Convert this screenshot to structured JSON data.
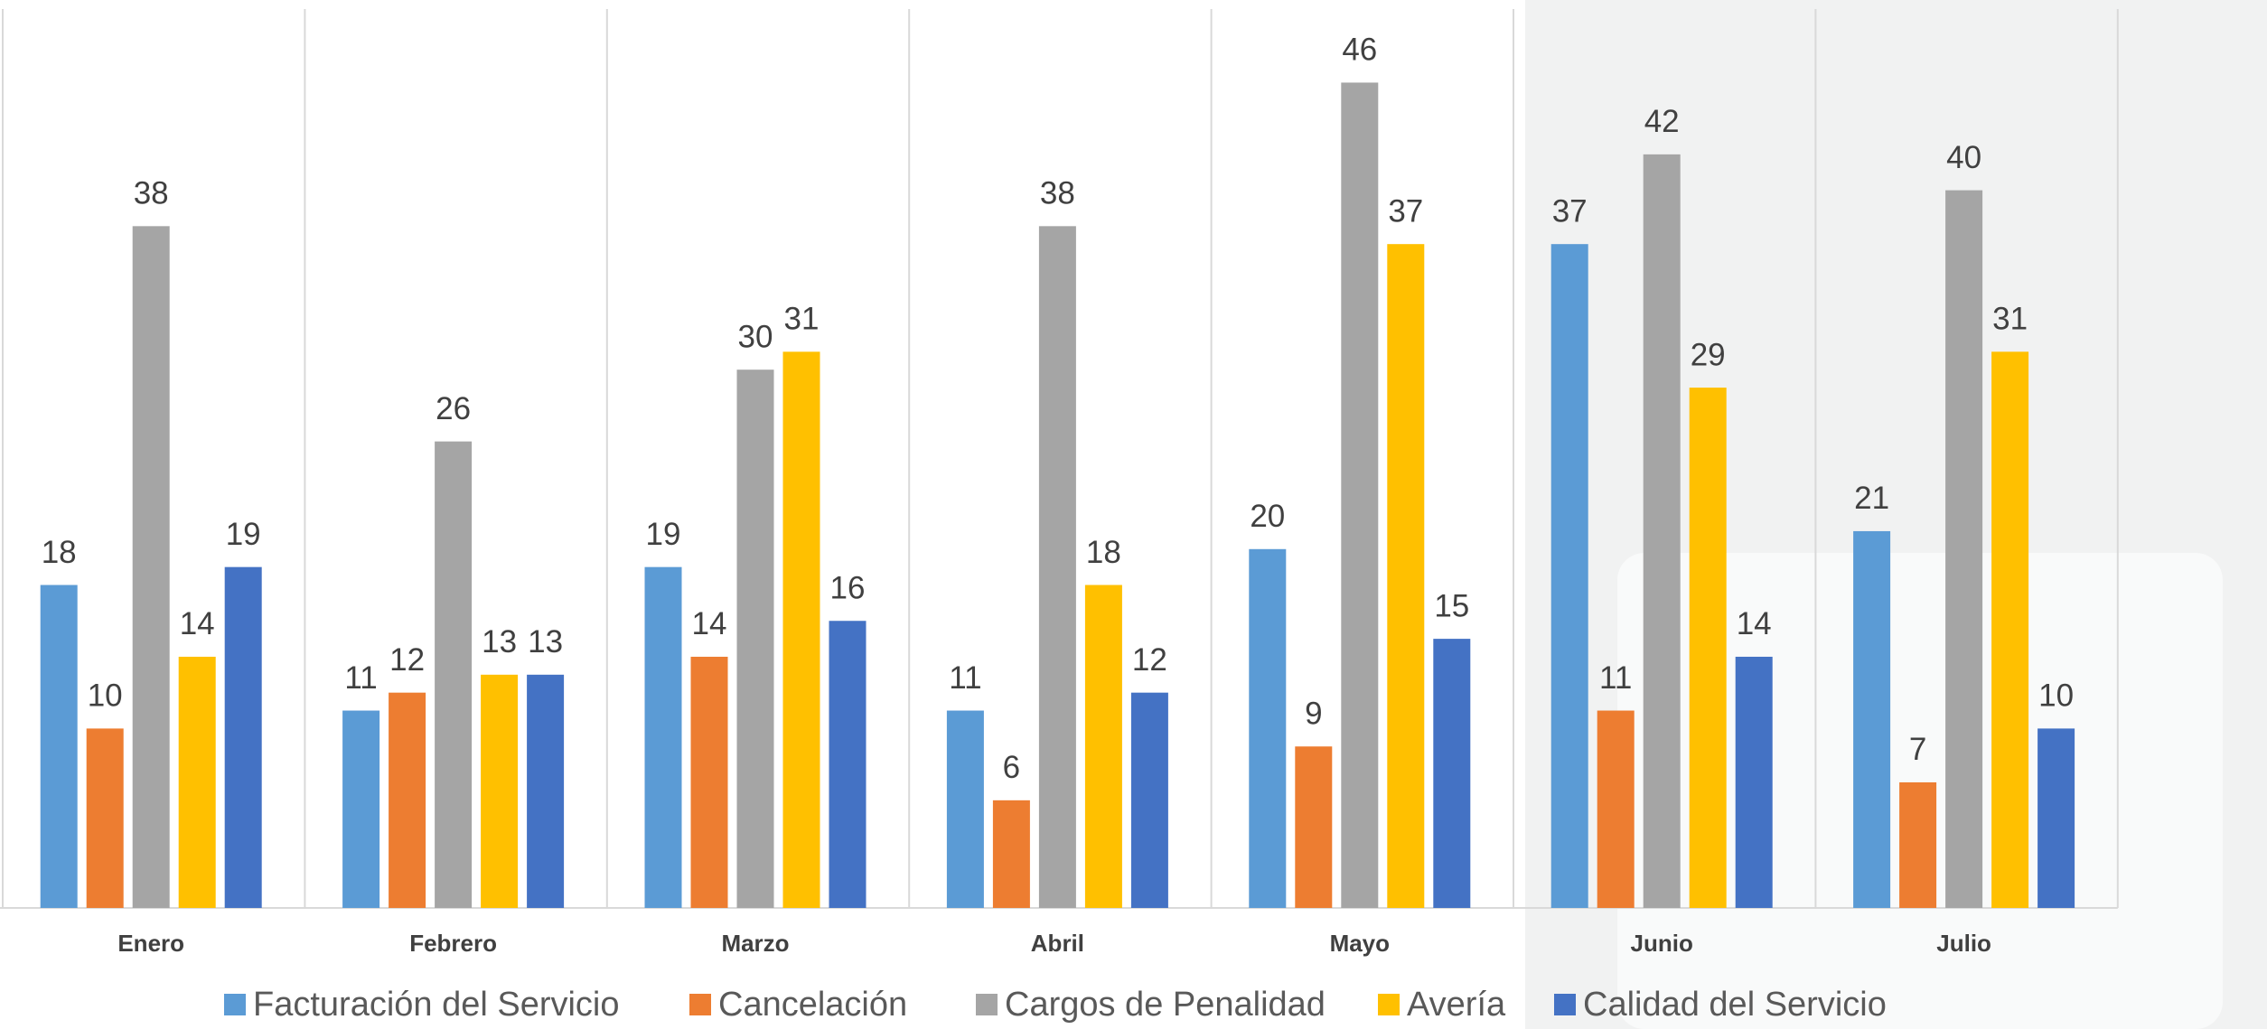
{
  "chart_data": {
    "type": "bar",
    "categories": [
      "Enero",
      "Febrero",
      "Marzo",
      "Abril",
      "Mayo",
      "Junio",
      "Julio"
    ],
    "series": [
      {
        "name": "Facturación del Servicio",
        "color": "#5b9bd5",
        "values": [
          18,
          11,
          19,
          11,
          20,
          37,
          21
        ]
      },
      {
        "name": "Cancelación",
        "color": "#ed7d31",
        "values": [
          10,
          12,
          14,
          6,
          9,
          11,
          7
        ]
      },
      {
        "name": "Cargos de Penalidad",
        "color": "#a5a5a5",
        "values": [
          38,
          26,
          30,
          38,
          46,
          42,
          40
        ]
      },
      {
        "name": "Avería",
        "color": "#ffc000",
        "values": [
          14,
          13,
          31,
          18,
          37,
          29,
          31
        ]
      },
      {
        "name": "Calidad del Servicio",
        "color": "#4472c4",
        "values": [
          19,
          13,
          16,
          12,
          15,
          14,
          10
        ]
      }
    ],
    "ylim": [
      0,
      50
    ],
    "legend": "bottom"
  }
}
